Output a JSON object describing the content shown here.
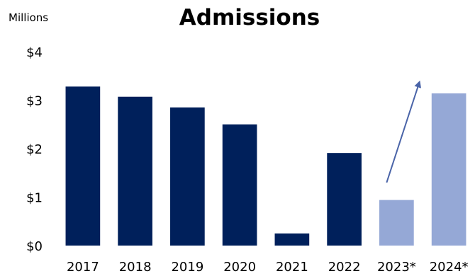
{
  "chart_data": {
    "type": "bar",
    "title": "Admissions",
    "units_label": "Millions",
    "categories": [
      "2017",
      "2018",
      "2019",
      "2020",
      "2021",
      "2022",
      "2023*",
      "2024*"
    ],
    "values": [
      3.28,
      3.07,
      2.85,
      2.5,
      0.25,
      1.91,
      0.94,
      3.14
    ],
    "projected": [
      false,
      false,
      false,
      false,
      false,
      false,
      true,
      true
    ],
    "ylim": [
      0,
      4
    ],
    "yticks": [
      0,
      1,
      2,
      3,
      4
    ],
    "ytick_labels": [
      "$0",
      "$1",
      "$2",
      "$3",
      "$4"
    ],
    "grid": false,
    "colors": {
      "actual": "#00205b",
      "projected": "#95a8d6",
      "arrow": "#4a64a8"
    },
    "annotations": [
      {
        "type": "arrow",
        "from": {
          "category": "2023*",
          "value": 1.3
        },
        "to": {
          "category": "2024*",
          "value": 3.35
        }
      }
    ]
  }
}
